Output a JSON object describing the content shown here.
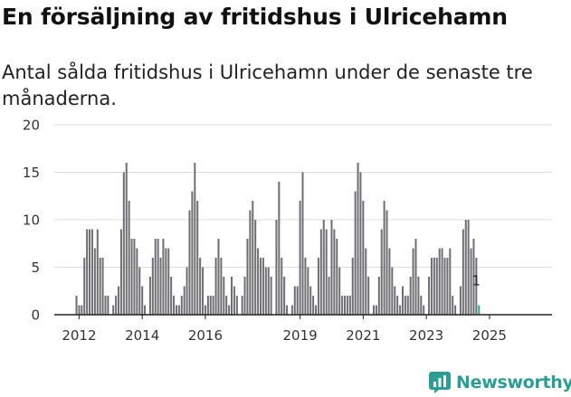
{
  "header": {
    "title": "En försäljning av fritidshus i Ulricehamn",
    "subtitle": "Antal sålda fritidshus i Ulricehamn under de senaste tre månaderna."
  },
  "brand": {
    "name": "Newsworthy",
    "color": "#2a9d94"
  },
  "colors": {
    "bar": "#6e6e73",
    "highlight": "#2a9d94",
    "grid": "#dcdcdc",
    "axis": "#222222"
  },
  "chart_data": {
    "type": "bar",
    "x_start": "2011-12",
    "x_end": "2025-12",
    "ylim": [
      0,
      20
    ],
    "yticks": [
      0,
      5,
      10,
      15,
      20
    ],
    "xtick_labels": [
      "2012",
      "2014",
      "2016",
      "2019",
      "2021",
      "2023",
      "2025"
    ],
    "grid": true,
    "legend": "none",
    "values": [
      2,
      1,
      1,
      6,
      9,
      9,
      9,
      7,
      9,
      6,
      6,
      2,
      2,
      0,
      1,
      2,
      3,
      9,
      15,
      16,
      12,
      8,
      8,
      7,
      5,
      3,
      1,
      0,
      4,
      6,
      8,
      8,
      6,
      8,
      7,
      7,
      4,
      2,
      1,
      1,
      2,
      3,
      5,
      11,
      13,
      16,
      12,
      6,
      5,
      1,
      2,
      2,
      2,
      6,
      8,
      6,
      4,
      2,
      1,
      4,
      3,
      2,
      0,
      2,
      4,
      8,
      11,
      12,
      10,
      7,
      6,
      6,
      5,
      5,
      4,
      0,
      10,
      14,
      6,
      4,
      1,
      0,
      1,
      3,
      3,
      12,
      15,
      6,
      5,
      3,
      2,
      1,
      6,
      9,
      10,
      9,
      4,
      10,
      9,
      8,
      5,
      2,
      2,
      2,
      2,
      6,
      13,
      16,
      15,
      12,
      7,
      4,
      0,
      1,
      1,
      4,
      9,
      12,
      11,
      7,
      5,
      3,
      2,
      1,
      3,
      2,
      2,
      4,
      7,
      8,
      4,
      2,
      1,
      0,
      4,
      6,
      6,
      6,
      7,
      7,
      6,
      6,
      7,
      2,
      1,
      0,
      3,
      9,
      10,
      10,
      7,
      8,
      6,
      1
    ],
    "highlight": {
      "label": "1",
      "value": 1
    }
  }
}
